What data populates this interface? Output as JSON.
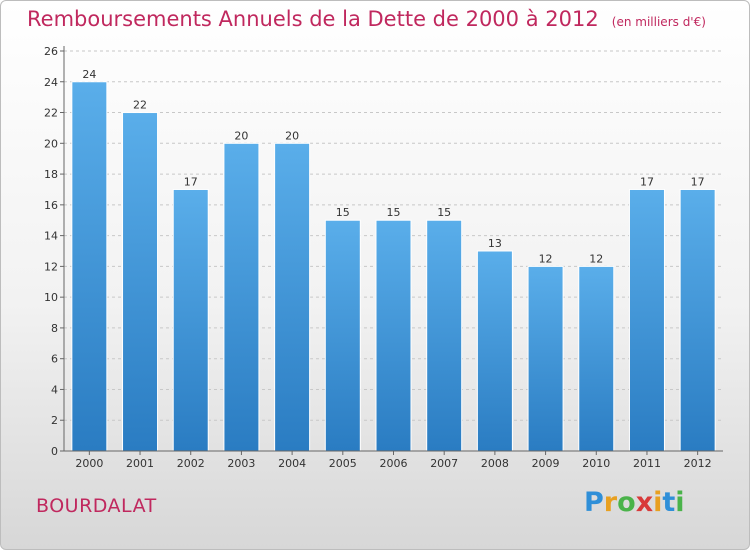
{
  "header": {
    "title": "Remboursements Annuels de la Dette de 2000 à 2012",
    "subtitle": "(en milliers d'€)"
  },
  "footer": {
    "commune": "BOURDALAT",
    "brand_letters": [
      "P",
      "r",
      "o",
      "x",
      "i",
      "t",
      "i"
    ],
    "brand_colors": [
      "#2f8fd8",
      "#e8a020",
      "#4ab34a",
      "#d83a3a",
      "#e8a020",
      "#2f8fd8",
      "#4ab34a"
    ]
  },
  "colors": {
    "bar_top": "#5aaeea",
    "bar_bottom": "#2a7cc2",
    "grid": "#c8c8c8",
    "axis": "#666666",
    "title": "#c0285e"
  },
  "chart_data": {
    "type": "bar",
    "categories": [
      "2000",
      "2001",
      "2002",
      "2003",
      "2004",
      "2005",
      "2006",
      "2007",
      "2008",
      "2009",
      "2010",
      "2011",
      "2012"
    ],
    "values": [
      24,
      22,
      17,
      20,
      20,
      15,
      15,
      15,
      13,
      12,
      12,
      17,
      17
    ],
    "y_ticks": [
      0,
      2,
      4,
      6,
      8,
      10,
      12,
      14,
      16,
      18,
      20,
      22,
      24,
      26
    ],
    "ylim": [
      0,
      26
    ],
    "grid": true,
    "grid_style": "dashed horizontal",
    "legend": "none"
  }
}
